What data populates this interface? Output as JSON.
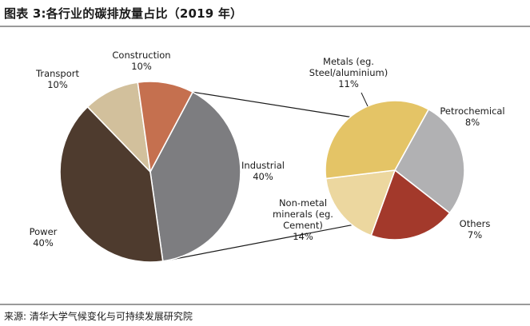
{
  "title": "图表 3:各行业的碳排放量占比（2019 年）",
  "source": "来源: 清华大学气候变化与可持续发展研究院",
  "chart_data": [
    {
      "type": "pie",
      "categories": [
        "Industrial",
        "Power",
        "Transport",
        "Construction"
      ],
      "values": [
        40,
        40,
        10,
        10
      ],
      "value_labels": [
        "40%",
        "40%",
        "10%",
        "10%"
      ],
      "colors": [
        "#7d7d80",
        "#4e3b2e",
        "#d2c09c",
        "#c5704f"
      ]
    },
    {
      "type": "pie",
      "breakdown_of": "Industrial",
      "categories": [
        "Metals (eg. Steel/aluminium)",
        "Petrochemical",
        "Others",
        "Non-metal minerals (eg. Cement)"
      ],
      "values": [
        11,
        8,
        7,
        14
      ],
      "value_labels": [
        "11%",
        "8%",
        "7%",
        "14%"
      ],
      "colors": [
        "#b1b1b3",
        "#a3392b",
        "#ecd79f",
        "#e4c466"
      ]
    }
  ],
  "labels": {
    "construction": [
      "Construction",
      "10%"
    ],
    "transport": [
      "Transport",
      "10%"
    ],
    "industrial": [
      "Industrial",
      "40%"
    ],
    "power": [
      "Power",
      "40%"
    ],
    "metals": [
      "Metals (eg.",
      "Steel/aluminium)",
      "11%"
    ],
    "petrochemical": [
      "Petrochemical",
      "8%"
    ],
    "others": [
      "Others",
      "7%"
    ],
    "nonmetal": [
      "Non-metal",
      "minerals (eg.",
      "Cement)",
      "14%"
    ]
  }
}
